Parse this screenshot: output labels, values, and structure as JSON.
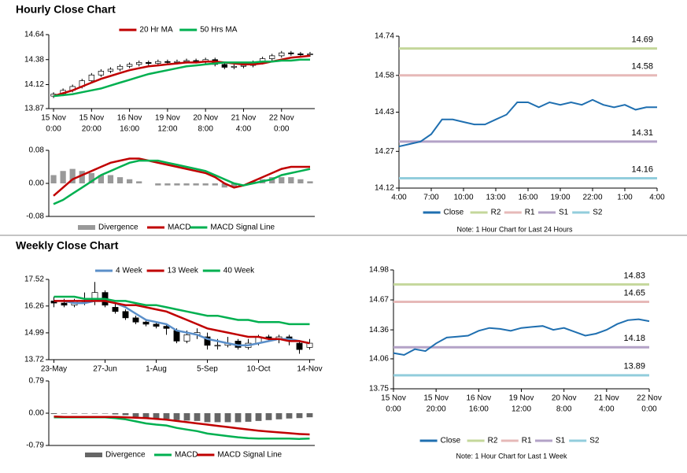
{
  "chart_data": [
    {
      "type": "candlestick",
      "title": "Hourly Close Chart",
      "categories": [
        [
          "15 Nov",
          "0:00"
        ],
        null,
        null,
        null,
        [
          "15 Nov",
          "20:00"
        ],
        null,
        null,
        null,
        [
          "16 Nov",
          "16:00"
        ],
        null,
        null,
        null,
        [
          "19 Nov",
          "12:00"
        ],
        null,
        null,
        null,
        [
          "20 Nov",
          "8:00"
        ],
        null,
        null,
        null,
        [
          "21 Nov",
          "4:00"
        ],
        null,
        null,
        null,
        [
          "22 Nov",
          "0:00"
        ],
        null,
        null,
        null
      ],
      "open": [
        14.0,
        14.02,
        14.06,
        14.1,
        14.16,
        14.22,
        14.26,
        14.28,
        14.31,
        14.33,
        14.35,
        14.34,
        14.36,
        14.35,
        14.36,
        14.37,
        14.36,
        14.38,
        14.33,
        14.3,
        14.31,
        14.32,
        14.35,
        14.39,
        14.42,
        14.45,
        14.44,
        14.43
      ],
      "high": [
        14.04,
        14.08,
        14.12,
        14.18,
        14.24,
        14.28,
        14.3,
        14.33,
        14.35,
        14.37,
        14.37,
        14.38,
        14.38,
        14.38,
        14.39,
        14.39,
        14.4,
        14.4,
        14.35,
        14.33,
        14.34,
        14.37,
        14.41,
        14.44,
        14.47,
        14.47,
        14.46,
        14.46
      ],
      "low": [
        13.98,
        14.0,
        14.04,
        14.08,
        14.14,
        14.2,
        14.24,
        14.26,
        14.29,
        14.31,
        14.32,
        14.32,
        14.33,
        14.33,
        14.34,
        14.34,
        14.34,
        14.31,
        14.28,
        14.28,
        14.29,
        14.3,
        14.33,
        14.37,
        14.4,
        14.42,
        14.41,
        14.41
      ],
      "close": [
        14.02,
        14.06,
        14.1,
        14.16,
        14.22,
        14.26,
        14.28,
        14.31,
        14.33,
        14.35,
        14.34,
        14.36,
        14.35,
        14.36,
        14.37,
        14.36,
        14.38,
        14.33,
        14.3,
        14.31,
        14.32,
        14.35,
        14.39,
        14.42,
        14.45,
        14.44,
        14.43,
        14.44
      ],
      "candle_colors": {
        "up": "#ffffff",
        "down": "#000000"
      },
      "series": [
        {
          "name": "20 Hr MA",
          "color": "#c00000",
          "values": [
            14.0,
            14.03,
            14.06,
            14.1,
            14.14,
            14.18,
            14.21,
            14.24,
            14.27,
            14.29,
            14.31,
            14.32,
            14.33,
            14.34,
            14.35,
            14.35,
            14.36,
            14.36,
            14.35,
            14.34,
            14.33,
            14.33,
            14.34,
            14.36,
            14.38,
            14.4,
            14.41,
            14.42
          ]
        },
        {
          "name": "50 Hrs MA",
          "color": "#00b050",
          "values": [
            14.0,
            14.01,
            14.02,
            14.04,
            14.06,
            14.08,
            14.11,
            14.14,
            14.17,
            14.2,
            14.23,
            14.25,
            14.27,
            14.29,
            14.31,
            14.32,
            14.33,
            14.34,
            14.35,
            14.35,
            14.35,
            14.35,
            14.36,
            14.36,
            14.37,
            14.37,
            14.38,
            14.38
          ]
        }
      ],
      "ylim": [
        13.87,
        14.64
      ],
      "yticks": [
        13.87,
        14.12,
        14.38,
        14.64
      ]
    },
    {
      "type": "macd",
      "series": [
        {
          "name": "Divergence",
          "color": "#999999",
          "style": "bar",
          "values": [
            0.02,
            0.03,
            0.035,
            0.03,
            0.025,
            0.02,
            0.02,
            0.015,
            0.01,
            0.005,
            0,
            -0.005,
            -0.005,
            -0.005,
            -0.005,
            -0.005,
            -0.005,
            -0.005,
            -0.01,
            -0.01,
            0,
            0.005,
            0.01,
            0.015,
            0.015,
            0.015,
            0.01,
            0.005
          ]
        },
        {
          "name": "MACD",
          "color": "#c00000",
          "style": "line",
          "values": [
            -0.03,
            -0.01,
            0.01,
            0.02,
            0.03,
            0.04,
            0.05,
            0.055,
            0.06,
            0.06,
            0.055,
            0.05,
            0.045,
            0.04,
            0.035,
            0.03,
            0.025,
            0.015,
            0.0,
            -0.01,
            -0.005,
            0.005,
            0.015,
            0.025,
            0.035,
            0.04,
            0.04,
            0.04
          ]
        },
        {
          "name": "MACD Signal Line",
          "color": "#00b050",
          "style": "line",
          "values": [
            -0.05,
            -0.04,
            -0.025,
            -0.01,
            0.005,
            0.02,
            0.03,
            0.04,
            0.05,
            0.055,
            0.055,
            0.055,
            0.05,
            0.045,
            0.04,
            0.035,
            0.03,
            0.02,
            0.01,
            0.0,
            -0.005,
            0.0,
            0.005,
            0.01,
            0.02,
            0.025,
            0.03,
            0.035
          ]
        }
      ],
      "ylim": [
        -0.08,
        0.08
      ],
      "yticks": [
        -0.08,
        {
          "value": 0,
          "label": "0.00"
        },
        0.08
      ]
    },
    {
      "type": "line",
      "categories": [
        "4:00",
        null,
        null,
        "7:00",
        null,
        null,
        "10:00",
        null,
        null,
        "13:00",
        null,
        null,
        "16:00",
        null,
        null,
        "19:00",
        null,
        null,
        "22:00",
        null,
        null,
        "1:00",
        null,
        null,
        "4:00"
      ],
      "series": [
        {
          "name": "Close",
          "color": "#1f6fb0",
          "values": [
            14.29,
            14.3,
            14.31,
            14.34,
            14.4,
            14.4,
            14.39,
            14.38,
            14.38,
            14.4,
            14.42,
            14.47,
            14.47,
            14.45,
            14.47,
            14.46,
            14.47,
            14.46,
            14.48,
            14.46,
            14.45,
            14.46,
            14.44,
            14.45,
            14.45
          ]
        }
      ],
      "levels": [
        {
          "name": "R2",
          "color": "#c4d79b",
          "value": 14.69
        },
        {
          "name": "R1",
          "color": "#e6b9b8",
          "value": 14.58
        },
        {
          "name": "S1",
          "color": "#b3a2c7",
          "value": 14.31
        },
        {
          "name": "S2",
          "color": "#92cddc",
          "value": 14.16
        }
      ],
      "ylim": [
        14.12,
        14.74
      ],
      "yticks": [
        14.12,
        14.27,
        14.43,
        14.58,
        14.74
      ],
      "note": "Note: 1 Hour Chart for Last 24 Hours"
    },
    {
      "type": "candlestick",
      "title": "Weekly Close Chart",
      "categories": [
        "23-May",
        null,
        null,
        null,
        null,
        "27-Jun",
        null,
        null,
        null,
        null,
        "1-Aug",
        null,
        null,
        null,
        null,
        "5-Sep",
        null,
        null,
        null,
        null,
        "10-Oct",
        null,
        null,
        null,
        null,
        "14-Nov"
      ],
      "open": [
        16.5,
        16.4,
        16.3,
        16.5,
        16.5,
        16.9,
        16.2,
        16.0,
        15.7,
        15.5,
        15.4,
        15.3,
        15.1,
        14.6,
        14.9,
        14.8,
        14.4,
        14.4,
        14.6,
        14.3,
        14.5,
        14.8,
        14.7,
        14.8,
        14.5,
        14.3
      ],
      "high": [
        16.7,
        16.6,
        16.6,
        16.9,
        17.4,
        17.0,
        16.4,
        16.1,
        15.8,
        15.6,
        15.5,
        15.4,
        15.2,
        15.1,
        15.2,
        15.0,
        14.7,
        14.8,
        14.7,
        14.7,
        14.9,
        14.9,
        14.9,
        14.9,
        14.6,
        14.7
      ],
      "low": [
        16.2,
        16.2,
        16.2,
        16.3,
        16.3,
        16.2,
        15.9,
        15.6,
        15.4,
        15.3,
        15.2,
        14.9,
        14.5,
        14.5,
        14.7,
        14.2,
        14.2,
        14.3,
        14.2,
        14.2,
        14.4,
        14.6,
        14.5,
        14.4,
        14.0,
        14.2
      ],
      "close": [
        16.4,
        16.3,
        16.5,
        16.5,
        16.9,
        16.3,
        16.0,
        15.7,
        15.5,
        15.4,
        15.3,
        15.2,
        14.6,
        14.9,
        15.0,
        14.4,
        14.4,
        14.5,
        14.3,
        14.5,
        14.8,
        14.7,
        14.8,
        14.6,
        14.2,
        14.5
      ],
      "candle_colors": {
        "up": "#ffffff",
        "down": "#000000"
      },
      "series": [
        {
          "name": "4 Week",
          "color": "#5b8fc9",
          "values": [
            16.5,
            16.5,
            16.4,
            16.4,
            16.5,
            16.5,
            16.4,
            16.2,
            15.9,
            15.6,
            15.5,
            15.4,
            15.1,
            15.0,
            14.9,
            14.7,
            14.6,
            14.5,
            14.4,
            14.4,
            14.5,
            14.6,
            14.7,
            14.7,
            14.6,
            14.5
          ]
        },
        {
          "name": "13 Week",
          "color": "#c00000",
          "values": [
            16.5,
            16.5,
            16.5,
            16.5,
            16.5,
            16.5,
            16.4,
            16.3,
            16.3,
            16.2,
            16.1,
            16.0,
            15.8,
            15.6,
            15.4,
            15.2,
            15.1,
            15.0,
            14.9,
            14.8,
            14.8,
            14.7,
            14.7,
            14.6,
            14.6,
            14.5
          ]
        },
        {
          "name": "40 Week",
          "color": "#00b050",
          "values": [
            16.7,
            16.7,
            16.7,
            16.6,
            16.6,
            16.6,
            16.5,
            16.5,
            16.4,
            16.3,
            16.3,
            16.2,
            16.1,
            16.0,
            15.9,
            15.8,
            15.8,
            15.7,
            15.6,
            15.6,
            15.5,
            15.5,
            15.5,
            15.4,
            15.4,
            15.4
          ]
        }
      ],
      "ylim": [
        13.72,
        17.52
      ],
      "yticks": [
        13.72,
        14.99,
        16.26,
        17.52
      ]
    },
    {
      "type": "macd",
      "series": [
        {
          "name": "Divergence",
          "color": "#666666",
          "style": "bar",
          "values": [
            -0.02,
            -0.01,
            -0.01,
            -0.01,
            -0.01,
            -0.01,
            -0.03,
            -0.05,
            -0.09,
            -0.13,
            -0.14,
            -0.14,
            -0.17,
            -0.18,
            -0.19,
            -0.22,
            -0.22,
            -0.22,
            -0.22,
            -0.21,
            -0.19,
            -0.17,
            -0.15,
            -0.13,
            -0.12,
            -0.1
          ]
        },
        {
          "name": "MACD",
          "color": "#00b050",
          "style": "line",
          "values": [
            -0.1,
            -0.1,
            -0.1,
            -0.1,
            -0.1,
            -0.1,
            -0.12,
            -0.15,
            -0.2,
            -0.25,
            -0.28,
            -0.3,
            -0.36,
            -0.4,
            -0.44,
            -0.5,
            -0.53,
            -0.56,
            -0.59,
            -0.61,
            -0.62,
            -0.62,
            -0.62,
            -0.62,
            -0.63,
            -0.62
          ]
        },
        {
          "name": "MACD Signal Line",
          "color": "#c00000",
          "style": "line",
          "values": [
            -0.08,
            -0.09,
            -0.09,
            -0.09,
            -0.09,
            -0.09,
            -0.09,
            -0.1,
            -0.11,
            -0.12,
            -0.14,
            -0.16,
            -0.19,
            -0.22,
            -0.25,
            -0.28,
            -0.31,
            -0.34,
            -0.37,
            -0.4,
            -0.43,
            -0.45,
            -0.47,
            -0.49,
            -0.51,
            -0.52
          ]
        }
      ],
      "ylim": [
        -0.79,
        0.79
      ],
      "yticks": [
        -0.79,
        {
          "value": 0,
          "label": "0.00"
        },
        0.79
      ]
    },
    {
      "type": "line",
      "categories": [
        [
          "15 Nov",
          "0:00"
        ],
        null,
        null,
        null,
        [
          "15 Nov",
          "20:00"
        ],
        null,
        null,
        null,
        [
          "16 Nov",
          "16:00"
        ],
        null,
        null,
        null,
        [
          "19 Nov",
          "12:00"
        ],
        null,
        null,
        null,
        [
          "20 Nov",
          "8:00"
        ],
        null,
        null,
        null,
        [
          "21 Nov",
          "4:00"
        ],
        null,
        null,
        null,
        [
          "22 Nov",
          "0:00"
        ]
      ],
      "series": [
        {
          "name": "Close",
          "color": "#1f6fb0",
          "values": [
            14.12,
            14.1,
            14.16,
            14.14,
            14.22,
            14.28,
            14.29,
            14.3,
            14.35,
            14.38,
            14.37,
            14.35,
            14.38,
            14.39,
            14.4,
            14.36,
            14.38,
            14.34,
            14.3,
            14.32,
            14.36,
            14.42,
            14.46,
            14.47,
            14.45
          ]
        }
      ],
      "levels": [
        {
          "name": "R2",
          "color": "#c4d79b",
          "value": 14.83
        },
        {
          "name": "R1",
          "color": "#e6b9b8",
          "value": 14.65
        },
        {
          "name": "S1",
          "color": "#b3a2c7",
          "value": 14.18
        },
        {
          "name": "S2",
          "color": "#92cddc",
          "value": 13.89
        }
      ],
      "ylim": [
        13.75,
        14.98
      ],
      "yticks": [
        13.75,
        14.06,
        14.36,
        14.67,
        14.98
      ],
      "note": "Note: 1 Hour Chart for Last 1 Week"
    }
  ]
}
